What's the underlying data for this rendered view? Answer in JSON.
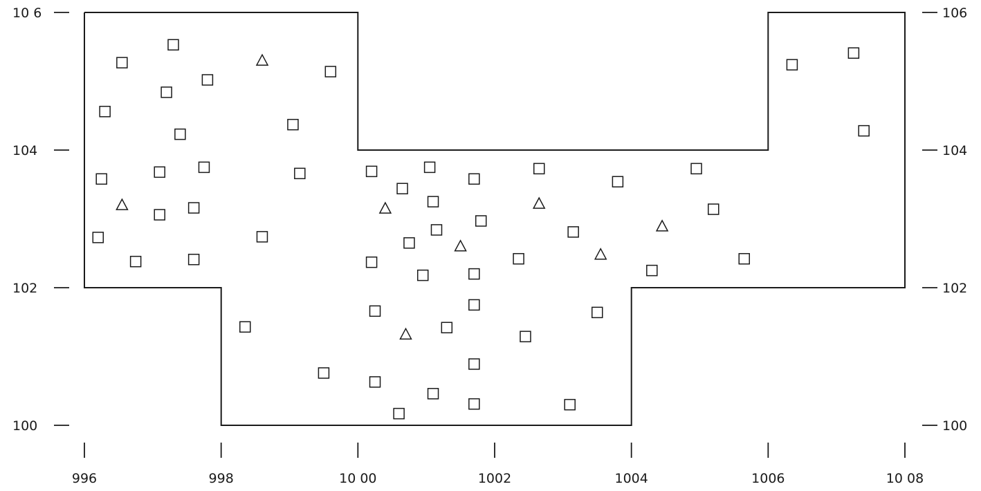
{
  "chart_data": {
    "type": "scatter",
    "title": "",
    "xlabel": "",
    "ylabel": "",
    "xlim": [
      996,
      1008
    ],
    "ylim": [
      100,
      106
    ],
    "grid": false,
    "x_ticks": [
      996,
      998,
      1000,
      1002,
      1004,
      1006,
      1008
    ],
    "x_tick_labels": [
      "996",
      "998",
      "10 00",
      "1002",
      "1004",
      "1006",
      "10 08"
    ],
    "y_ticks": [
      100,
      102,
      104,
      106
    ],
    "y_tick_labels_left": [
      "100",
      "102",
      "104",
      "10 6"
    ],
    "y_tick_labels_right": [
      "100",
      "102",
      "104",
      "106"
    ],
    "boundary": [
      [
        996,
        106
      ],
      [
        1000,
        106
      ],
      [
        1000,
        104
      ],
      [
        1006,
        104
      ],
      [
        1006,
        106
      ],
      [
        1008,
        106
      ],
      [
        1008,
        102
      ],
      [
        1004,
        102
      ],
      [
        1004,
        100
      ],
      [
        998,
        100
      ],
      [
        998,
        102
      ],
      [
        996,
        102
      ],
      [
        996,
        106
      ]
    ],
    "series": [
      {
        "marker": "square",
        "points": [
          [
            997.3,
            105.53
          ],
          [
            996.55,
            105.27
          ],
          [
            997.8,
            105.02
          ],
          [
            999.6,
            105.14
          ],
          [
            997.2,
            104.84
          ],
          [
            996.3,
            104.56
          ],
          [
            999.05,
            104.37
          ],
          [
            997.4,
            104.23
          ],
          [
            996.25,
            103.58
          ],
          [
            997.1,
            103.68
          ],
          [
            997.75,
            103.75
          ],
          [
            999.15,
            103.66
          ],
          [
            997.6,
            103.16
          ],
          [
            997.1,
            103.06
          ],
          [
            996.2,
            102.73
          ],
          [
            998.6,
            102.74
          ],
          [
            996.75,
            102.38
          ],
          [
            997.6,
            102.41
          ],
          [
            998.35,
            101.43
          ],
          [
            999.5,
            100.76
          ],
          [
            1000.2,
            103.69
          ],
          [
            1000.65,
            103.44
          ],
          [
            1001.05,
            103.75
          ],
          [
            1001.7,
            103.58
          ],
          [
            1002.65,
            103.73
          ],
          [
            1003.8,
            103.54
          ],
          [
            1004.95,
            103.73
          ],
          [
            1001.1,
            103.25
          ],
          [
            1001.8,
            102.97
          ],
          [
            1001.15,
            102.84
          ],
          [
            1000.75,
            102.65
          ],
          [
            1003.15,
            102.81
          ],
          [
            1005.2,
            103.14
          ],
          [
            1000.2,
            102.37
          ],
          [
            1002.35,
            102.42
          ],
          [
            1000.95,
            102.18
          ],
          [
            1001.7,
            102.2
          ],
          [
            1004.3,
            102.25
          ],
          [
            1005.65,
            102.42
          ],
          [
            1000.25,
            101.66
          ],
          [
            1001.7,
            101.75
          ],
          [
            1001.3,
            101.42
          ],
          [
            1003.5,
            101.64
          ],
          [
            1002.45,
            101.29
          ],
          [
            1000.25,
            100.63
          ],
          [
            1001.7,
            100.89
          ],
          [
            1001.1,
            100.46
          ],
          [
            1000.6,
            100.17
          ],
          [
            1001.7,
            100.31
          ],
          [
            1003.1,
            100.3
          ],
          [
            1006.35,
            105.24
          ],
          [
            1007.25,
            105.41
          ],
          [
            1007.4,
            104.28
          ]
        ]
      },
      {
        "marker": "triangle",
        "points": [
          [
            998.6,
            105.3
          ],
          [
            996.55,
            103.2
          ],
          [
            1000.4,
            103.15
          ],
          [
            1002.65,
            103.22
          ],
          [
            1004.45,
            102.89
          ],
          [
            1001.5,
            102.6
          ],
          [
            1003.55,
            102.48
          ],
          [
            1000.7,
            101.32
          ]
        ]
      }
    ]
  }
}
